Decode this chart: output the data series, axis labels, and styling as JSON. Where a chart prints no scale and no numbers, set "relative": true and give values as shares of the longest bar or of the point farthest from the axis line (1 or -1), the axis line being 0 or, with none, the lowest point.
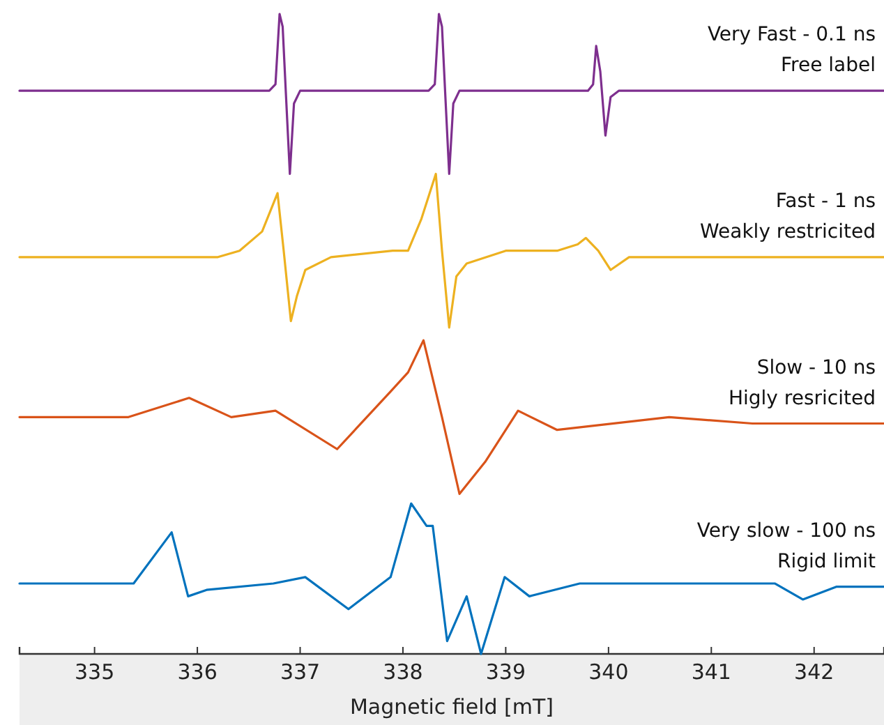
{
  "chart_data": {
    "type": "line",
    "relative": true,
    "tick_labels": "x",
    "xlim": [
      334.27,
      342.68
    ],
    "xticks": [
      335,
      336,
      337,
      338,
      339,
      340,
      341,
      342
    ],
    "xlabel": "Magnetic field [mT]",
    "annotations": [
      "Free label",
      "Weakly restricited",
      "Higly resricited",
      "Rigid limit"
    ],
    "series": [
      {
        "name": "Very Fast - 0.1 ns",
        "color": "#7e2f8e",
        "x": [
          334.27,
          336.7,
          336.76,
          336.8,
          336.83,
          336.86,
          336.9,
          336.94,
          337.0,
          337.2,
          338.25,
          338.31,
          338.35,
          338.38,
          338.41,
          338.45,
          338.49,
          338.55,
          338.7,
          339.8,
          339.85,
          339.88,
          339.92,
          339.97,
          340.02,
          340.1,
          340.3,
          342.68
        ],
        "values": [
          0.88,
          0.88,
          0.89,
          1,
          0.98,
          0.88,
          0.75,
          0.86,
          0.88,
          0.88,
          0.88,
          0.89,
          1,
          0.98,
          0.88,
          0.75,
          0.86,
          0.88,
          0.88,
          0.88,
          0.89,
          0.95,
          0.91,
          0.81,
          0.87,
          0.88,
          0.88,
          0.88
        ]
      },
      {
        "name": "Fast - 1 ns",
        "color": "#edb120",
        "x": [
          334.27,
          336.2,
          336.41,
          336.63,
          336.78,
          336.84,
          336.91,
          336.97,
          337.05,
          337.3,
          337.9,
          338.05,
          338.18,
          338.32,
          338.38,
          338.45,
          338.52,
          338.62,
          339.0,
          339.5,
          339.7,
          339.78,
          339.9,
          340.02,
          340.2,
          340.5,
          342.68
        ],
        "values": [
          0.62,
          0.62,
          0.63,
          0.66,
          0.72,
          0.63,
          0.52,
          0.56,
          0.6,
          0.62,
          0.63,
          0.63,
          0.68,
          0.75,
          0.63,
          0.51,
          0.59,
          0.61,
          0.63,
          0.63,
          0.64,
          0.65,
          0.63,
          0.6,
          0.62,
          0.62,
          0.62
        ]
      },
      {
        "name": "Slow - 10 ns",
        "color": "#d95319",
        "x": [
          334.27,
          335.33,
          335.92,
          336.33,
          336.76,
          337.36,
          337.88,
          338.05,
          338.2,
          338.38,
          338.55,
          338.8,
          339.12,
          339.5,
          340.59,
          341.4,
          342.68
        ],
        "values": [
          0.37,
          0.37,
          0.4,
          0.37,
          0.38,
          0.32,
          0.41,
          0.44,
          0.49,
          0.37,
          0.25,
          0.3,
          0.38,
          0.35,
          0.37,
          0.36,
          0.36
        ]
      },
      {
        "name": "Very slow - 100 ns",
        "color": "#0072bd",
        "x": [
          334.27,
          335.38,
          335.75,
          335.91,
          336.09,
          336.74,
          337.05,
          337.47,
          337.88,
          338.08,
          338.23,
          338.29,
          338.43,
          338.62,
          338.76,
          338.99,
          339.23,
          339.72,
          341.62,
          341.89,
          342.22,
          342.68
        ],
        "values": [
          0.11,
          0.11,
          0.19,
          0.09,
          0.1,
          0.11,
          0.12,
          0.07,
          0.12,
          0.235,
          0.2,
          0.2,
          0.02,
          0.09,
          0,
          0.12,
          0.09,
          0.11,
          0.11,
          0.085,
          0.105,
          0.105
        ]
      }
    ]
  }
}
